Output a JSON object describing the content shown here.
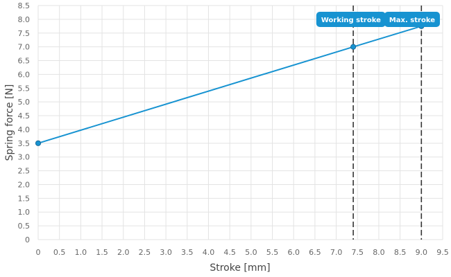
{
  "chart_data": {
    "type": "line",
    "title": "",
    "xlabel": "Stroke [mm]",
    "ylabel": "Spring force [N]",
    "xlim": [
      0,
      9.5
    ],
    "ylim": [
      0,
      8.5
    ],
    "x_ticks": [
      "0",
      "0.5",
      "1.0",
      "1.5",
      "2.0",
      "2.5",
      "3.0",
      "3.5",
      "4.0",
      "4.5",
      "5.0",
      "5.5",
      "6.0",
      "6.5",
      "7.0",
      "7.5",
      "8.0",
      "8.5",
      "9.0",
      "9.5"
    ],
    "y_ticks": [
      "0",
      "0.5",
      "1.0",
      "1.5",
      "2.0",
      "2.5",
      "3.0",
      "3.5",
      "4.0",
      "4.5",
      "5.0",
      "5.5",
      "6.0",
      "6.5",
      "7.0",
      "7.5",
      "8.0",
      "8.5"
    ],
    "grid": true,
    "series": [
      {
        "color": "#1793d1",
        "points": [
          {
            "x": 0,
            "y": 3.5
          },
          {
            "x": 7.4,
            "y": 7.0
          },
          {
            "x": 9.0,
            "y": 7.75
          }
        ]
      }
    ],
    "markers": [
      {
        "label": "Working stroke",
        "x": 7.4,
        "y": 7.0
      },
      {
        "label": "Max. stroke",
        "x": 9.0,
        "y": 7.75
      }
    ],
    "callout_color": "#1793d1",
    "marker_line_color": "#333333"
  }
}
